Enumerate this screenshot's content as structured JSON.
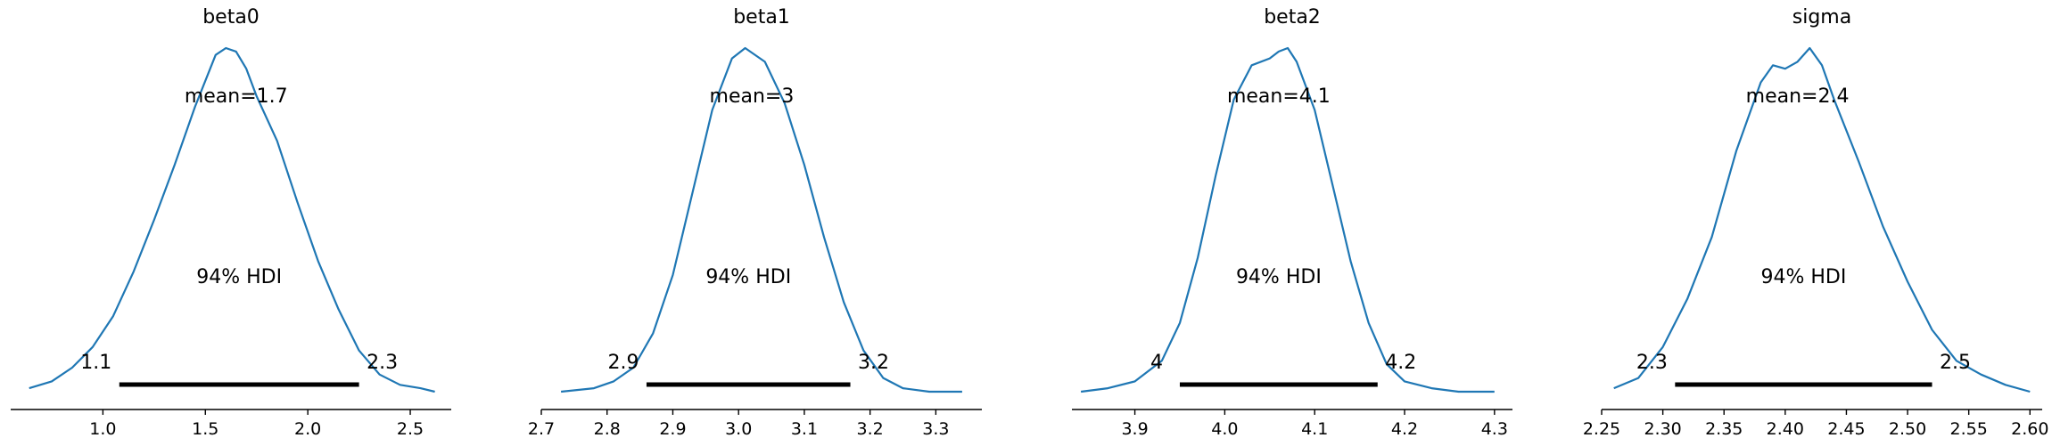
{
  "chart_data": [
    {
      "type": "density",
      "title": "beta0",
      "mean_label": "mean=1.7",
      "mean": 1.65,
      "hdi_label": "94% HDI",
      "hdi_low": 1.08,
      "hdi_high": 2.25,
      "hdi_low_label": "1.1",
      "hdi_high_label": "2.3",
      "xlim": [
        0.55,
        2.7
      ],
      "ylim": [
        0,
        1.1
      ],
      "xticks": [
        1.0,
        1.5,
        2.0,
        2.5
      ],
      "xtick_labels": [
        "1.0",
        "1.5",
        "2.0",
        "2.5"
      ],
      "density": {
        "x": [
          0.64,
          0.75,
          0.85,
          0.95,
          1.05,
          1.15,
          1.25,
          1.35,
          1.45,
          1.55,
          1.6,
          1.65,
          1.7,
          1.75,
          1.85,
          1.95,
          2.05,
          2.15,
          2.25,
          2.35,
          2.45,
          2.55,
          2.62
        ],
        "y": [
          0.01,
          0.03,
          0.07,
          0.13,
          0.22,
          0.35,
          0.5,
          0.66,
          0.83,
          0.98,
          1.0,
          0.99,
          0.94,
          0.86,
          0.73,
          0.55,
          0.38,
          0.24,
          0.12,
          0.05,
          0.02,
          0.01,
          0.0
        ]
      }
    },
    {
      "type": "density",
      "title": "beta1",
      "mean_label": "mean=3",
      "mean": 3.02,
      "hdi_label": "94% HDI",
      "hdi_low": 2.86,
      "hdi_high": 3.17,
      "hdi_low_label": "2.9",
      "hdi_high_label": "3.2",
      "xlim": [
        2.7,
        3.37
      ],
      "ylim": [
        0,
        1.1
      ],
      "xticks": [
        2.7,
        2.8,
        2.9,
        3.0,
        3.1,
        3.2,
        3.3
      ],
      "xtick_labels": [
        "2.7",
        "2.8",
        "2.9",
        "3.0",
        "3.1",
        "3.2",
        "3.3"
      ],
      "density": {
        "x": [
          2.73,
          2.78,
          2.81,
          2.84,
          2.87,
          2.9,
          2.93,
          2.96,
          2.99,
          3.01,
          3.04,
          3.07,
          3.1,
          3.13,
          3.16,
          3.19,
          3.22,
          3.25,
          3.29,
          3.34
        ],
        "y": [
          0.0,
          0.01,
          0.03,
          0.07,
          0.17,
          0.34,
          0.58,
          0.82,
          0.97,
          1.0,
          0.96,
          0.84,
          0.66,
          0.45,
          0.26,
          0.12,
          0.04,
          0.01,
          0.0,
          0.0
        ]
      }
    },
    {
      "type": "density",
      "title": "beta2",
      "mean_label": "mean=4.1",
      "mean": 4.06,
      "hdi_label": "94% HDI",
      "hdi_low": 3.95,
      "hdi_high": 4.17,
      "hdi_low_label": "4",
      "hdi_high_label": "4.2",
      "xlim": [
        3.83,
        4.32
      ],
      "ylim": [
        0,
        1.1
      ],
      "xticks": [
        3.9,
        4.0,
        4.1,
        4.2,
        4.3
      ],
      "xtick_labels": [
        "3.9",
        "4.0",
        "4.1",
        "4.2",
        "4.3"
      ],
      "density": {
        "x": [
          3.84,
          3.87,
          3.9,
          3.93,
          3.95,
          3.97,
          3.99,
          4.01,
          4.03,
          4.05,
          4.06,
          4.07,
          4.08,
          4.1,
          4.12,
          4.14,
          4.16,
          4.18,
          4.2,
          4.23,
          4.26,
          4.3
        ],
        "y": [
          0.0,
          0.01,
          0.03,
          0.09,
          0.2,
          0.39,
          0.63,
          0.85,
          0.95,
          0.97,
          0.99,
          1.0,
          0.96,
          0.82,
          0.6,
          0.38,
          0.2,
          0.08,
          0.03,
          0.01,
          0.0,
          0.0
        ]
      }
    },
    {
      "type": "density",
      "title": "sigma",
      "mean_label": "mean=2.4",
      "mean": 2.41,
      "hdi_label": "94% HDI",
      "hdi_low": 2.31,
      "hdi_high": 2.52,
      "hdi_low_label": "2.3",
      "hdi_high_label": "2.5",
      "xlim": [
        2.25,
        2.61
      ],
      "ylim": [
        0,
        1.1
      ],
      "xticks": [
        2.25,
        2.3,
        2.35,
        2.4,
        2.45,
        2.5,
        2.55,
        2.6
      ],
      "xtick_labels": [
        "2.25",
        "2.30",
        "2.35",
        "2.40",
        "2.45",
        "2.50",
        "2.55",
        "2.60"
      ],
      "density": {
        "x": [
          2.26,
          2.28,
          2.3,
          2.32,
          2.34,
          2.36,
          2.38,
          2.39,
          2.4,
          2.41,
          2.42,
          2.43,
          2.44,
          2.46,
          2.48,
          2.5,
          2.52,
          2.54,
          2.56,
          2.58,
          2.6
        ],
        "y": [
          0.01,
          0.04,
          0.13,
          0.27,
          0.45,
          0.7,
          0.9,
          0.95,
          0.94,
          0.96,
          1.0,
          0.95,
          0.85,
          0.67,
          0.48,
          0.32,
          0.18,
          0.09,
          0.05,
          0.02,
          0.0
        ]
      }
    }
  ],
  "colors": {
    "kde": "#1f77b4",
    "hdi": "#000000"
  }
}
